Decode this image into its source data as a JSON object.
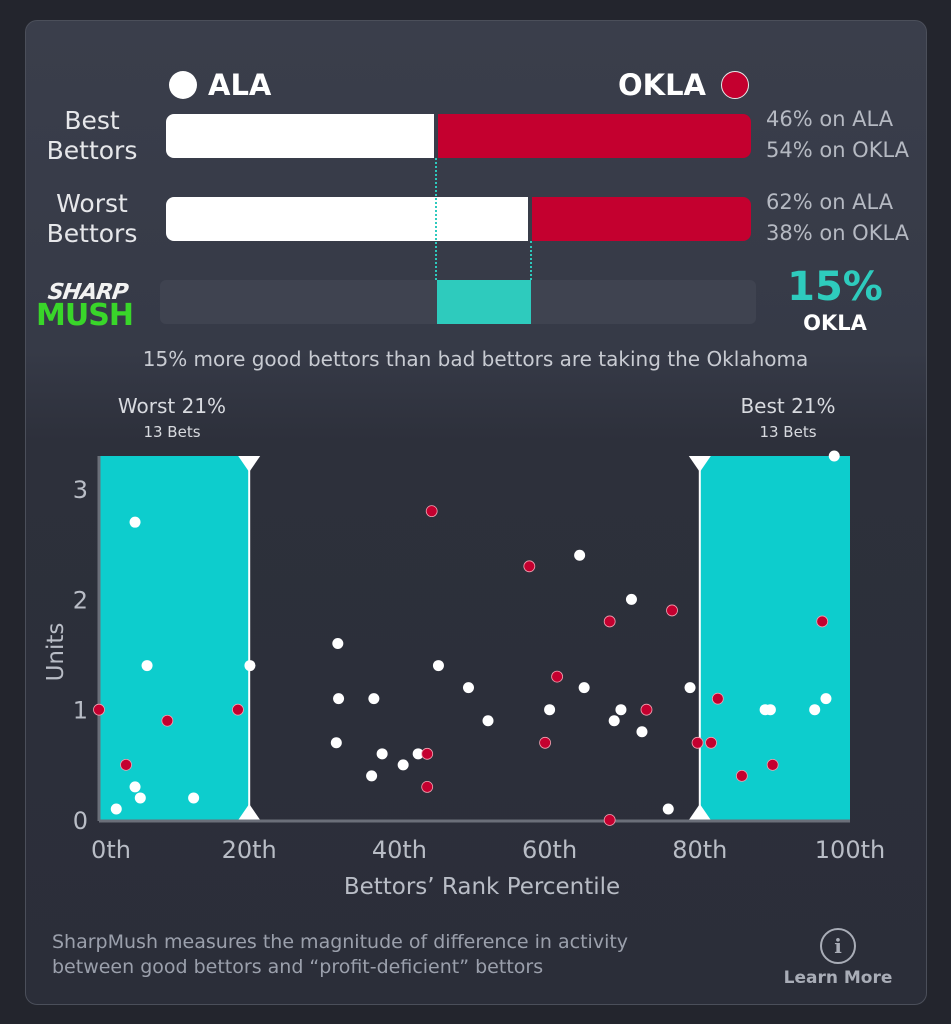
{
  "header": {
    "team_left": "ALA",
    "team_right": "OKLA",
    "colors": {
      "left": "#ffffff",
      "right": "#c4002f",
      "accent": "#2ecbbd",
      "highlight": "#0dcdcd"
    }
  },
  "rows": [
    {
      "label_line1": "Best",
      "label_line2": "Bettors",
      "left_pct": 46,
      "right_pct": 54,
      "left_text": "46% on ALA",
      "right_text": "54% on OKLA"
    },
    {
      "label_line1": "Worst",
      "label_line2": "Bettors",
      "left_pct": 62,
      "right_pct": 38,
      "left_text": "62% on ALA",
      "right_text": "38% on OKLA"
    }
  ],
  "sharp": {
    "logo_line1": "SHARP",
    "logo_line2": "MUSH",
    "value": "15%",
    "team": "OKLA",
    "difference_pct": 15,
    "caption": "15% more good bettors than bad bettors are taking the Oklahoma"
  },
  "chart_data": {
    "type": "scatter",
    "xlabel": "Bettors’ Rank Percentile",
    "ylabel": "Units",
    "xlim": [
      0,
      100
    ],
    "ylim": [
      0,
      3.3
    ],
    "x_ticks": [
      "0th",
      "20th",
      "40th",
      "60th",
      "80th",
      "100th"
    ],
    "x_tick_values": [
      0,
      20,
      40,
      60,
      80,
      100
    ],
    "y_ticks": [
      "0",
      "1",
      "2",
      "3"
    ],
    "y_tick_values": [
      0,
      1,
      2,
      3
    ],
    "regions": [
      {
        "title": "Worst 21%",
        "subtitle": "13 Bets",
        "x_range": [
          0,
          20
        ]
      },
      {
        "title": "Best 21%",
        "subtitle": "13 Bets",
        "x_range": [
          80,
          100
        ]
      }
    ],
    "series": [
      {
        "name": "ALA",
        "color": "#ffffff",
        "points": [
          [
            4.8,
            2.7
          ],
          [
            6.4,
            1.4
          ],
          [
            20.1,
            1.4
          ],
          [
            4.8,
            0.3
          ],
          [
            5.5,
            0.2
          ],
          [
            2.3,
            0.1
          ],
          [
            12.6,
            0.2
          ],
          [
            31.8,
            1.6
          ],
          [
            45.2,
            1.4
          ],
          [
            49.2,
            1.2
          ],
          [
            31.9,
            1.1
          ],
          [
            36.6,
            1.1
          ],
          [
            31.6,
            0.7
          ],
          [
            37.7,
            0.6
          ],
          [
            42.5,
            0.6
          ],
          [
            40.5,
            0.5
          ],
          [
            36.3,
            0.4
          ],
          [
            64,
            2.4
          ],
          [
            70.9,
            2.0
          ],
          [
            64.6,
            1.2
          ],
          [
            78.7,
            1.2
          ],
          [
            96.8,
            1.1
          ],
          [
            60,
            1.0
          ],
          [
            69.5,
            1.0
          ],
          [
            88.7,
            1.0
          ],
          [
            89.4,
            1.0
          ],
          [
            95.3,
            1.0
          ],
          [
            51.8,
            0.9
          ],
          [
            68.6,
            0.9
          ],
          [
            72.3,
            0.8
          ],
          [
            75.8,
            0.1
          ],
          [
            97.9,
            3.3
          ]
        ]
      },
      {
        "name": "OKLA",
        "color": "#c4002f",
        "points": [
          [
            0,
            1.0
          ],
          [
            9.1,
            0.9
          ],
          [
            18.5,
            1.0
          ],
          [
            3.6,
            0.5
          ],
          [
            44.3,
            2.8
          ],
          [
            43.7,
            0.6
          ],
          [
            43.7,
            0.3
          ],
          [
            57.3,
            2.3
          ],
          [
            76.3,
            1.9
          ],
          [
            68,
            1.8
          ],
          [
            96.3,
            1.8
          ],
          [
            61,
            1.3
          ],
          [
            82.4,
            1.1
          ],
          [
            72.9,
            1.0
          ],
          [
            59.4,
            0.7
          ],
          [
            79.7,
            0.7
          ],
          [
            81.5,
            0.7
          ],
          [
            89.7,
            0.5
          ],
          [
            85.6,
            0.4
          ],
          [
            68,
            0
          ]
        ]
      }
    ]
  },
  "footer": {
    "description_line1": "SharpMush measures the magnitude of difference in activity",
    "description_line2": "between good bettors and “profit-deficient” bettors",
    "learn_more": "Learn More",
    "info_icon": "info-circle-icon"
  }
}
